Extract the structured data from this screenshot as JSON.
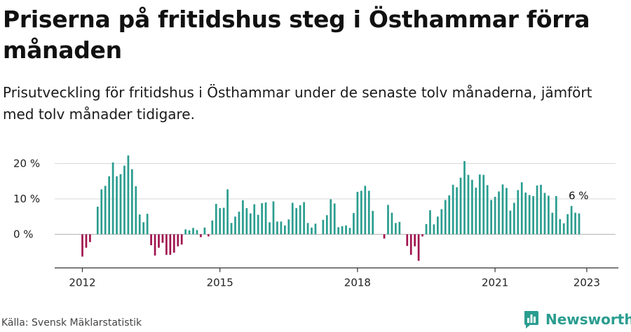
{
  "title": "Priserna på fritidshus steg i Östhammar förra månaden",
  "subtitle": "Prisutveckling för fritidshus i Östhammar under de senaste tolv månaderna, jämfört med tolv månader tidigare.",
  "source": "Källa: Svensk Mäklarstatistik",
  "brand": {
    "name": "Newsworthy",
    "icon": "newsworthy-bar-logo-icon"
  },
  "colors": {
    "positive": "#2a9d8f",
    "negative": "#a0144f",
    "grid": "#d9d9d9",
    "axis": "#333333",
    "brand": "#2a9d8f"
  },
  "chart_data": {
    "type": "bar",
    "title": "",
    "xlabel": "",
    "ylabel": "",
    "x_start": "2012-01",
    "frequency": "monthly",
    "x_ticks": [
      "2012",
      "2015",
      "2018",
      "2021",
      "2023"
    ],
    "y_ticks": [
      "20 %",
      "10 %",
      "0 %"
    ],
    "y_tick_values": [
      20,
      10,
      0
    ],
    "ylim": [
      -9,
      22
    ],
    "grid": "horizontal",
    "legend": "none",
    "annotation": {
      "text": "6 %"
    },
    "values": [
      -6.3,
      -3.8,
      -2.2,
      null,
      7.8,
      12.7,
      13.7,
      16.4,
      20.3,
      16.4,
      17.0,
      19.4,
      22.3,
      18.4,
      13.6,
      5.6,
      3.4,
      5.8,
      -3.1,
      -6.0,
      -3.8,
      -2.4,
      -5.8,
      -5.8,
      -5.2,
      -3.4,
      -2.9,
      1.4,
      1.1,
      1.8,
      1.2,
      -0.8,
      1.9,
      -0.6,
      3.9,
      8.6,
      7.4,
      7.5,
      12.7,
      3.2,
      5.0,
      6.4,
      9.6,
      7.4,
      5.9,
      8.5,
      5.5,
      8.8,
      9.0,
      3.4,
      9.3,
      3.6,
      3.6,
      2.5,
      4.2,
      8.9,
      7.4,
      8.2,
      9.1,
      3.2,
      1.9,
      3.0,
      null,
      4.1,
      5.4,
      9.9,
      8.7,
      2.0,
      2.3,
      2.5,
      1.8,
      6.0,
      12.0,
      12.3,
      13.7,
      12.3,
      6.6,
      null,
      null,
      -1.2,
      8.3,
      6.1,
      3.2,
      3.5,
      null,
      -3.3,
      -5.8,
      -3.4,
      -7.5,
      -0.6,
      2.9,
      6.8,
      2.8,
      5.0,
      7.1,
      9.7,
      11.0,
      14.0,
      13.3,
      16.0,
      20.7,
      16.8,
      15.4,
      13.2,
      16.9,
      16.8,
      13.9,
      9.7,
      10.6,
      12.1,
      14.1,
      13.1,
      6.7,
      8.9,
      12.5,
      14.7,
      11.8,
      11.1,
      10.8,
      13.8,
      14.0,
      11.7,
      10.9,
      6.1,
      10.8,
      4.3,
      3.1,
      5.7,
      8.0,
      6.1,
      5.9
    ]
  }
}
